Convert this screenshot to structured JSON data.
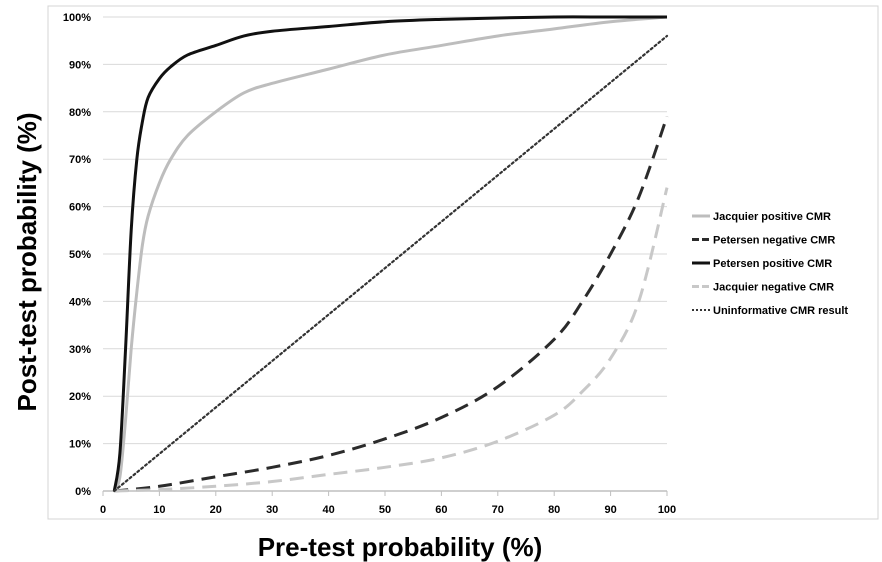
{
  "chart_data": {
    "type": "line",
    "title": "",
    "xlabel": "Pre-test probability (%)",
    "ylabel": "Post-test probability (%)",
    "xlim": [
      0,
      100
    ],
    "ylim": [
      0,
      100
    ],
    "x_ticks": [
      0,
      10,
      20,
      30,
      40,
      50,
      60,
      70,
      80,
      90,
      100
    ],
    "x_tick_labels": [
      "0",
      "10",
      "20",
      "30",
      "40",
      "50",
      "60",
      "70",
      "80",
      "90",
      "100"
    ],
    "y_ticks": [
      0,
      10,
      20,
      30,
      40,
      50,
      60,
      70,
      80,
      90,
      100
    ],
    "y_tick_labels": [
      "0%",
      "10%",
      "20%",
      "30%",
      "40%",
      "50%",
      "60%",
      "70%",
      "80%",
      "90%",
      "100%"
    ],
    "grid": "horizontal",
    "legend_position": "right",
    "series": [
      {
        "name": "Jacquier positive CMR",
        "color": "#bdbdbd",
        "dash": "solid",
        "x": [
          2,
          3,
          4,
          5,
          6,
          7,
          8,
          10,
          12,
          15,
          20,
          25,
          30,
          40,
          50,
          60,
          70,
          80,
          90,
          100
        ],
        "y": [
          0,
          3,
          15,
          30,
          42,
          52,
          58,
          65,
          70,
          75,
          80,
          84,
          86,
          89,
          92,
          94,
          96,
          97.5,
          99,
          100
        ]
      },
      {
        "name": "Petersen negative CMR",
        "color": "#2b2b2b",
        "dash": "dashed",
        "x": [
          2,
          10,
          20,
          30,
          40,
          50,
          60,
          70,
          80,
          85,
          90,
          95,
          100
        ],
        "y": [
          0,
          1,
          3,
          5,
          7.5,
          11,
          15.5,
          22,
          32,
          40,
          50,
          62,
          79
        ]
      },
      {
        "name": "Petersen positive CMR",
        "color": "#111111",
        "dash": "solid",
        "x": [
          2,
          3,
          4,
          5,
          6,
          7,
          8,
          10,
          12,
          15,
          20,
          25,
          30,
          40,
          50,
          60,
          70,
          80,
          90,
          100
        ],
        "y": [
          0,
          8,
          30,
          55,
          70,
          78,
          83,
          87,
          89.5,
          92,
          94,
          96,
          97,
          98,
          99,
          99.5,
          99.8,
          100,
          100,
          100
        ]
      },
      {
        "name": "Jacquier negative CMR",
        "color": "#c8c8c8",
        "dash": "dashed",
        "x": [
          2,
          10,
          20,
          30,
          40,
          50,
          60,
          70,
          80,
          85,
          90,
          95,
          100
        ],
        "y": [
          0,
          0.3,
          1,
          2,
          3.5,
          5,
          7,
          10.5,
          16,
          21,
          28,
          40,
          64
        ]
      },
      {
        "name": "Uninformative CMR result",
        "color": "#333333",
        "dash": "dotted",
        "x": [
          2,
          100
        ],
        "y": [
          0,
          96
        ]
      }
    ]
  }
}
